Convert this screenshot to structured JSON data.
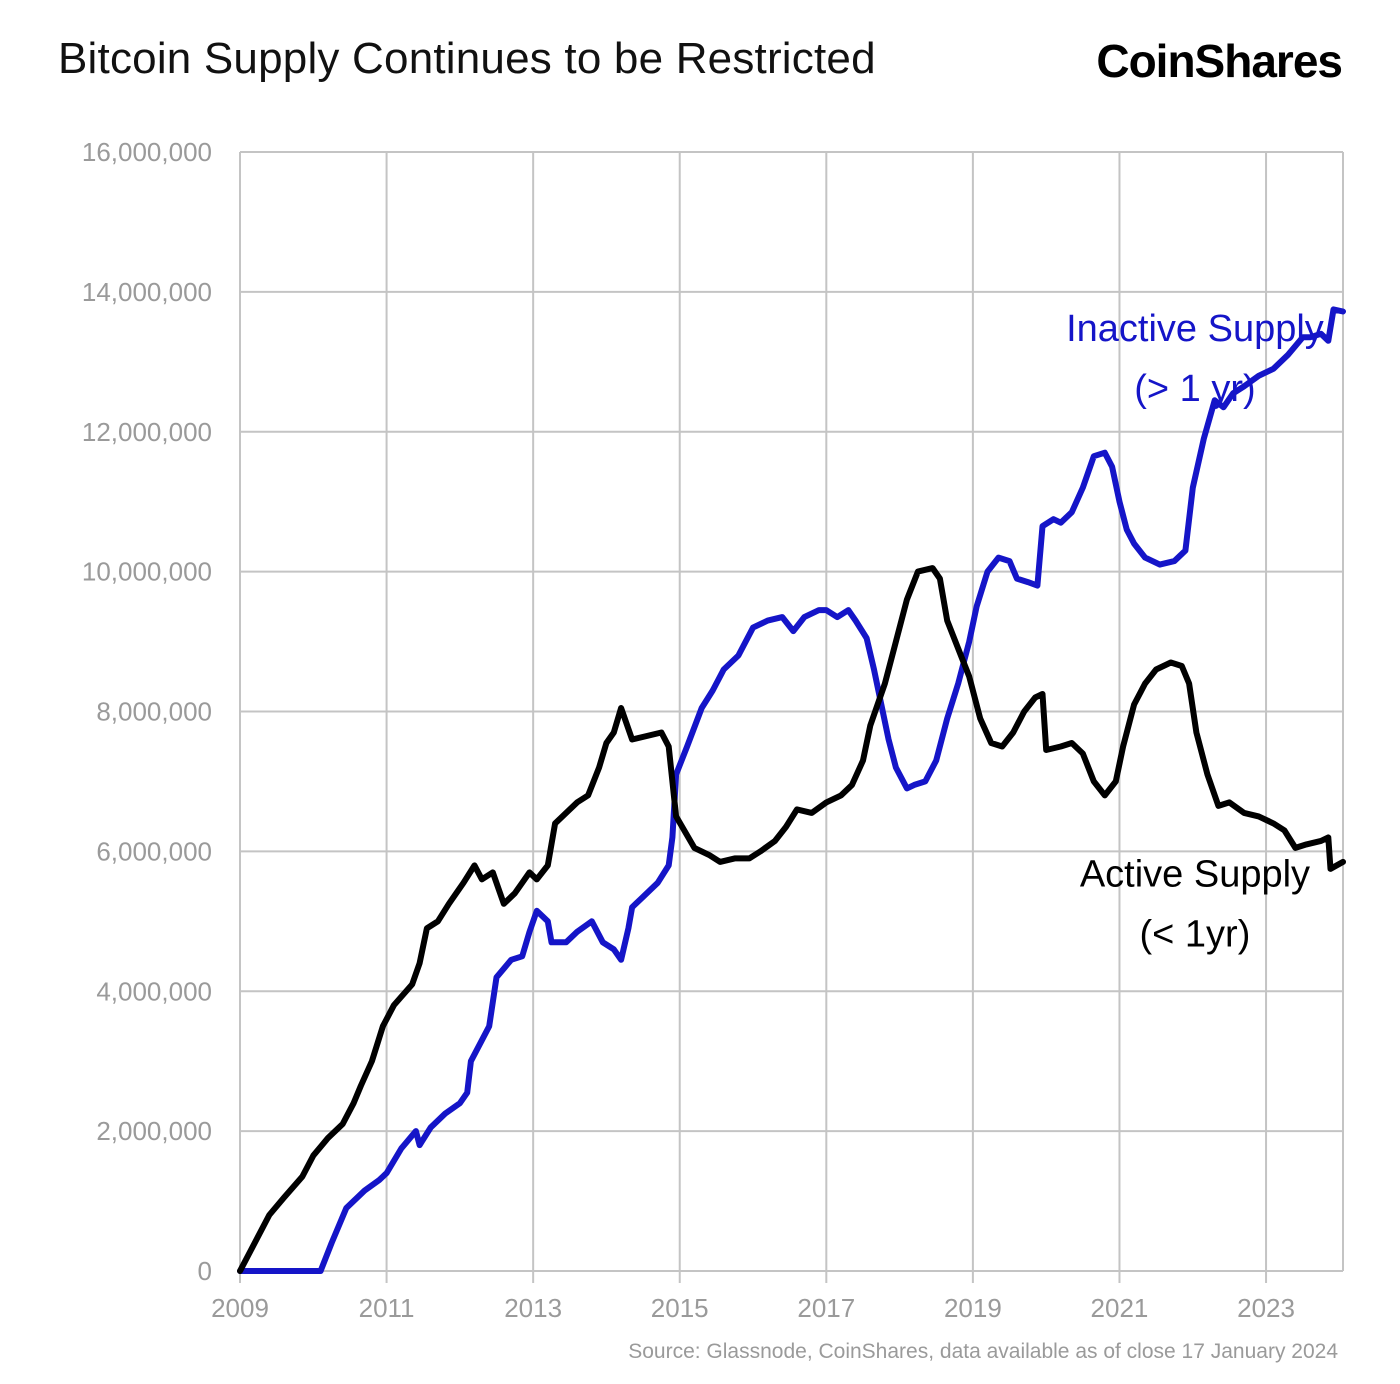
{
  "header": {
    "title": "Bitcoin Supply Continues to be Restricted",
    "logo_text": "CoinShares"
  },
  "footer": {
    "source": "Source: Glassnode, CoinShares, data available as of close 17 January 2024"
  },
  "colors": {
    "inactive": "#1515c8",
    "active": "#000000",
    "grid": "#c4c4c4",
    "tick": "#9a9a9a"
  },
  "chart_data": {
    "type": "line",
    "title": "Bitcoin Supply Continues to be Restricted",
    "xlabel": "",
    "ylabel": "",
    "xlim": [
      2009,
      2024.05
    ],
    "ylim": [
      0,
      16000000
    ],
    "x_ticks": [
      2009,
      2011,
      2013,
      2015,
      2017,
      2019,
      2021,
      2023
    ],
    "x_tick_labels": [
      "2009",
      "2011",
      "2013",
      "2015",
      "2017",
      "2019",
      "2021",
      "2023"
    ],
    "y_ticks": [
      0,
      2000000,
      4000000,
      6000000,
      8000000,
      10000000,
      12000000,
      14000000,
      16000000
    ],
    "y_tick_labels": [
      "0",
      "2,000,000",
      "4,000,000",
      "6,000,000",
      "8,000,000",
      "10,000,000",
      "12,000,000",
      "14,000,000",
      "16,000,000"
    ],
    "grid": true,
    "legend": "inline annotations",
    "annotations": [
      {
        "series": "inactive",
        "lines": [
          "Inactive Supply",
          "(> 1 yr)"
        ],
        "x": 2022.03,
        "y": 13300000
      },
      {
        "series": "active",
        "lines": [
          "Active Supply",
          "(< 1yr)"
        ],
        "x": 2022.03,
        "y": 5500000
      }
    ],
    "series": [
      {
        "name": "Inactive Supply (> 1 yr)",
        "color_key": "inactive",
        "points": [
          [
            2009.0,
            0
          ],
          [
            2009.5,
            0
          ],
          [
            2010.0,
            0
          ],
          [
            2010.1,
            0
          ],
          [
            2010.25,
            400000
          ],
          [
            2010.45,
            900000
          ],
          [
            2010.7,
            1150000
          ],
          [
            2010.9,
            1300000
          ],
          [
            2011.0,
            1400000
          ],
          [
            2011.2,
            1750000
          ],
          [
            2011.4,
            2000000
          ],
          [
            2011.45,
            1800000
          ],
          [
            2011.6,
            2050000
          ],
          [
            2011.8,
            2250000
          ],
          [
            2012.0,
            2400000
          ],
          [
            2012.1,
            2550000
          ],
          [
            2012.15,
            3000000
          ],
          [
            2012.3,
            3300000
          ],
          [
            2012.4,
            3500000
          ],
          [
            2012.5,
            4200000
          ],
          [
            2012.7,
            4450000
          ],
          [
            2012.85,
            4500000
          ],
          [
            2012.95,
            4850000
          ],
          [
            2013.05,
            5150000
          ],
          [
            2013.2,
            5000000
          ],
          [
            2013.25,
            4700000
          ],
          [
            2013.45,
            4700000
          ],
          [
            2013.6,
            4850000
          ],
          [
            2013.8,
            5000000
          ],
          [
            2013.95,
            4700000
          ],
          [
            2014.1,
            4600000
          ],
          [
            2014.2,
            4450000
          ],
          [
            2014.3,
            4900000
          ],
          [
            2014.35,
            5200000
          ],
          [
            2014.5,
            5350000
          ],
          [
            2014.7,
            5550000
          ],
          [
            2014.85,
            5800000
          ],
          [
            2014.9,
            6200000
          ],
          [
            2014.95,
            7100000
          ],
          [
            2015.1,
            7500000
          ],
          [
            2015.3,
            8050000
          ],
          [
            2015.45,
            8300000
          ],
          [
            2015.6,
            8600000
          ],
          [
            2015.8,
            8800000
          ],
          [
            2016.0,
            9200000
          ],
          [
            2016.2,
            9300000
          ],
          [
            2016.4,
            9350000
          ],
          [
            2016.55,
            9150000
          ],
          [
            2016.7,
            9350000
          ],
          [
            2016.9,
            9450000
          ],
          [
            2017.0,
            9450000
          ],
          [
            2017.15,
            9350000
          ],
          [
            2017.3,
            9450000
          ],
          [
            2017.4,
            9300000
          ],
          [
            2017.55,
            9050000
          ],
          [
            2017.65,
            8600000
          ],
          [
            2017.75,
            8100000
          ],
          [
            2017.85,
            7600000
          ],
          [
            2017.95,
            7200000
          ],
          [
            2018.1,
            6900000
          ],
          [
            2018.2,
            6950000
          ],
          [
            2018.35,
            7000000
          ],
          [
            2018.5,
            7300000
          ],
          [
            2018.65,
            7900000
          ],
          [
            2018.8,
            8400000
          ],
          [
            2018.95,
            9000000
          ],
          [
            2019.05,
            9500000
          ],
          [
            2019.2,
            10000000
          ],
          [
            2019.35,
            10200000
          ],
          [
            2019.5,
            10150000
          ],
          [
            2019.6,
            9900000
          ],
          [
            2019.75,
            9850000
          ],
          [
            2019.88,
            9800000
          ],
          [
            2019.95,
            10650000
          ],
          [
            2020.1,
            10750000
          ],
          [
            2020.2,
            10700000
          ],
          [
            2020.35,
            10850000
          ],
          [
            2020.5,
            11200000
          ],
          [
            2020.65,
            11650000
          ],
          [
            2020.8,
            11700000
          ],
          [
            2020.9,
            11500000
          ],
          [
            2021.0,
            11000000
          ],
          [
            2021.1,
            10600000
          ],
          [
            2021.2,
            10400000
          ],
          [
            2021.35,
            10200000
          ],
          [
            2021.55,
            10100000
          ],
          [
            2021.75,
            10150000
          ],
          [
            2021.9,
            10300000
          ],
          [
            2022.0,
            11200000
          ],
          [
            2022.15,
            11900000
          ],
          [
            2022.3,
            12450000
          ],
          [
            2022.42,
            12350000
          ],
          [
            2022.55,
            12550000
          ],
          [
            2022.7,
            12650000
          ],
          [
            2022.9,
            12800000
          ],
          [
            2023.1,
            12900000
          ],
          [
            2023.3,
            13100000
          ],
          [
            2023.5,
            13350000
          ],
          [
            2023.6,
            13350000
          ],
          [
            2023.75,
            13400000
          ],
          [
            2023.85,
            13300000
          ],
          [
            2023.92,
            13750000
          ],
          [
            2024.05,
            13720000
          ]
        ]
      },
      {
        "name": "Active Supply (< 1yr)",
        "color_key": "active",
        "points": [
          [
            2009.0,
            0
          ],
          [
            2009.15,
            300000
          ],
          [
            2009.4,
            800000
          ],
          [
            2009.6,
            1050000
          ],
          [
            2009.85,
            1350000
          ],
          [
            2010.0,
            1650000
          ],
          [
            2010.2,
            1900000
          ],
          [
            2010.4,
            2100000
          ],
          [
            2010.55,
            2400000
          ],
          [
            2010.65,
            2650000
          ],
          [
            2010.8,
            3000000
          ],
          [
            2010.95,
            3500000
          ],
          [
            2011.1,
            3800000
          ],
          [
            2011.35,
            4100000
          ],
          [
            2011.45,
            4400000
          ],
          [
            2011.55,
            4900000
          ],
          [
            2011.7,
            5000000
          ],
          [
            2011.85,
            5250000
          ],
          [
            2012.05,
            5550000
          ],
          [
            2012.2,
            5800000
          ],
          [
            2012.3,
            5600000
          ],
          [
            2012.45,
            5700000
          ],
          [
            2012.6,
            5250000
          ],
          [
            2012.75,
            5400000
          ],
          [
            2012.85,
            5550000
          ],
          [
            2012.95,
            5700000
          ],
          [
            2013.05,
            5600000
          ],
          [
            2013.2,
            5800000
          ],
          [
            2013.3,
            6400000
          ],
          [
            2013.45,
            6550000
          ],
          [
            2013.6,
            6700000
          ],
          [
            2013.75,
            6800000
          ],
          [
            2013.9,
            7200000
          ],
          [
            2014.0,
            7550000
          ],
          [
            2014.1,
            7700000
          ],
          [
            2014.2,
            8050000
          ],
          [
            2014.35,
            7600000
          ],
          [
            2014.55,
            7650000
          ],
          [
            2014.75,
            7700000
          ],
          [
            2014.85,
            7500000
          ],
          [
            2014.95,
            6500000
          ],
          [
            2015.2,
            6050000
          ],
          [
            2015.4,
            5950000
          ],
          [
            2015.55,
            5850000
          ],
          [
            2015.75,
            5900000
          ],
          [
            2015.95,
            5900000
          ],
          [
            2016.1,
            6000000
          ],
          [
            2016.3,
            6150000
          ],
          [
            2016.45,
            6350000
          ],
          [
            2016.6,
            6600000
          ],
          [
            2016.8,
            6550000
          ],
          [
            2017.0,
            6700000
          ],
          [
            2017.2,
            6800000
          ],
          [
            2017.35,
            6950000
          ],
          [
            2017.5,
            7300000
          ],
          [
            2017.6,
            7800000
          ],
          [
            2017.8,
            8400000
          ],
          [
            2017.95,
            9000000
          ],
          [
            2018.1,
            9600000
          ],
          [
            2018.25,
            10000000
          ],
          [
            2018.45,
            10050000
          ],
          [
            2018.55,
            9900000
          ],
          [
            2018.65,
            9300000
          ],
          [
            2018.8,
            8900000
          ],
          [
            2018.95,
            8500000
          ],
          [
            2019.1,
            7900000
          ],
          [
            2019.25,
            7550000
          ],
          [
            2019.4,
            7500000
          ],
          [
            2019.55,
            7700000
          ],
          [
            2019.7,
            8000000
          ],
          [
            2019.85,
            8200000
          ],
          [
            2019.95,
            8250000
          ],
          [
            2020.0,
            7450000
          ],
          [
            2020.2,
            7500000
          ],
          [
            2020.35,
            7550000
          ],
          [
            2020.5,
            7400000
          ],
          [
            2020.65,
            7000000
          ],
          [
            2020.8,
            6800000
          ],
          [
            2020.95,
            7000000
          ],
          [
            2021.05,
            7500000
          ],
          [
            2021.2,
            8100000
          ],
          [
            2021.35,
            8400000
          ],
          [
            2021.5,
            8600000
          ],
          [
            2021.7,
            8700000
          ],
          [
            2021.85,
            8650000
          ],
          [
            2021.95,
            8400000
          ],
          [
            2022.05,
            7700000
          ],
          [
            2022.2,
            7100000
          ],
          [
            2022.35,
            6650000
          ],
          [
            2022.5,
            6700000
          ],
          [
            2022.7,
            6550000
          ],
          [
            2022.9,
            6500000
          ],
          [
            2023.1,
            6400000
          ],
          [
            2023.25,
            6300000
          ],
          [
            2023.4,
            6050000
          ],
          [
            2023.55,
            6100000
          ],
          [
            2023.75,
            6150000
          ],
          [
            2023.85,
            6200000
          ],
          [
            2023.88,
            5750000
          ],
          [
            2024.05,
            5850000
          ]
        ]
      }
    ]
  }
}
